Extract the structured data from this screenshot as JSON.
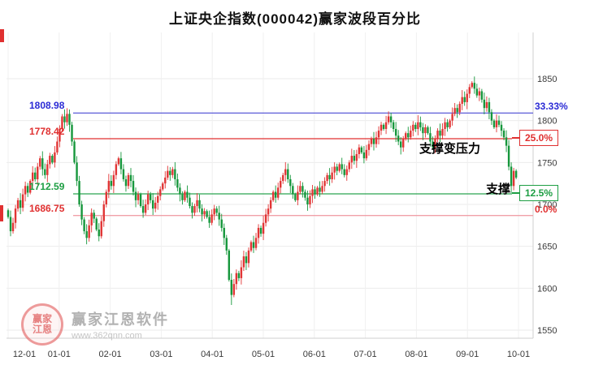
{
  "title": "上证央企指数(000042)赢家波段百分比",
  "annotations": [
    {
      "text": "支撑变压力"
    },
    {
      "text": "支撑"
    }
  ],
  "levels": [
    {
      "value": 1808.98,
      "label": "1808.98",
      "pct": "33.33%",
      "color": "#2b2bd5",
      "line_color": "#5c5cd8",
      "boxed": false
    },
    {
      "value": 1778.42,
      "label": "1778.42",
      "pct": "25.0%",
      "color": "#e03030",
      "line_color": "#e03030",
      "boxed": true
    },
    {
      "value": 1712.59,
      "label": "1712.59",
      "pct": "12.5%",
      "color": "#1d9e43",
      "line_color": "#2aa350",
      "boxed": true
    },
    {
      "value": 1686.75,
      "label": "1686.75",
      "pct": "0.0%",
      "color": "#e03030",
      "line_color": "#f0a0a8",
      "boxed": false
    }
  ],
  "watermark": {
    "logo_line1": "赢家",
    "logo_line2": "江恩",
    "name": "赢家江恩软件",
    "url": "www.362qnn.com"
  },
  "chart_data": {
    "type": "candlestick",
    "title": "上证央企指数(000042)赢家波段百分比",
    "xlabel": "",
    "ylabel": "",
    "x_labels": [
      "12-01",
      "01-01",
      "02-01",
      "03-01",
      "04-01",
      "05-01",
      "06-01",
      "07-01",
      "08-01",
      "09-01",
      "10-01"
    ],
    "y_ticks": [
      1850,
      1800,
      1750,
      1700,
      1650,
      1600,
      1550
    ],
    "ylim": [
      1540,
      1905
    ],
    "grid": true,
    "up_color": "#e13535",
    "down_color": "#16973c",
    "level_lines": [
      1808.98,
      1778.42,
      1712.59,
      1686.75
    ],
    "level_percents": [
      33.33,
      25.0,
      12.5,
      0.0
    ],
    "closes": [
      1685,
      1668,
      1678,
      1695,
      1705,
      1696,
      1712,
      1722,
      1714,
      1728,
      1738,
      1730,
      1745,
      1755,
      1742,
      1735,
      1748,
      1758,
      1750,
      1762,
      1775,
      1790,
      1805,
      1798,
      1808,
      1795,
      1775,
      1750,
      1728,
      1700,
      1682,
      1668,
      1660,
      1675,
      1690,
      1683,
      1670,
      1662,
      1680,
      1700,
      1715,
      1728,
      1722,
      1735,
      1748,
      1755,
      1742,
      1730,
      1722,
      1735,
      1728,
      1715,
      1705,
      1712,
      1698,
      1690,
      1700,
      1712,
      1705,
      1695,
      1702,
      1710,
      1718,
      1725,
      1732,
      1740,
      1735,
      1742,
      1730,
      1720,
      1712,
      1705,
      1715,
      1708,
      1698,
      1690,
      1698,
      1705,
      1695,
      1688,
      1692,
      1685,
      1678,
      1688,
      1695,
      1690,
      1682,
      1672,
      1660,
      1645,
      1610,
      1592,
      1605,
      1618,
      1612,
      1625,
      1638,
      1630,
      1645,
      1655,
      1648,
      1660,
      1672,
      1665,
      1678,
      1688,
      1695,
      1705,
      1715,
      1708,
      1720,
      1728,
      1735,
      1742,
      1730,
      1722,
      1712,
      1705,
      1715,
      1722,
      1715,
      1708,
      1700,
      1710,
      1718,
      1712,
      1720,
      1715,
      1722,
      1728,
      1735,
      1730,
      1738,
      1745,
      1740,
      1748,
      1742,
      1735,
      1742,
      1750,
      1758,
      1752,
      1760,
      1768,
      1762,
      1755,
      1765,
      1772,
      1778,
      1772,
      1780,
      1788,
      1795,
      1790,
      1798,
      1805,
      1798,
      1790,
      1782,
      1775,
      1768,
      1778,
      1785,
      1780,
      1788,
      1795,
      1790,
      1798,
      1792,
      1785,
      1792,
      1785,
      1775,
      1768,
      1778,
      1788,
      1782,
      1790,
      1798,
      1792,
      1800,
      1808,
      1815,
      1810,
      1820,
      1828,
      1822,
      1832,
      1840,
      1845,
      1838,
      1830,
      1835,
      1825,
      1815,
      1822,
      1810,
      1800,
      1792,
      1800,
      1795,
      1788,
      1780,
      1770,
      1745,
      1722,
      1740,
      1732
    ]
  }
}
